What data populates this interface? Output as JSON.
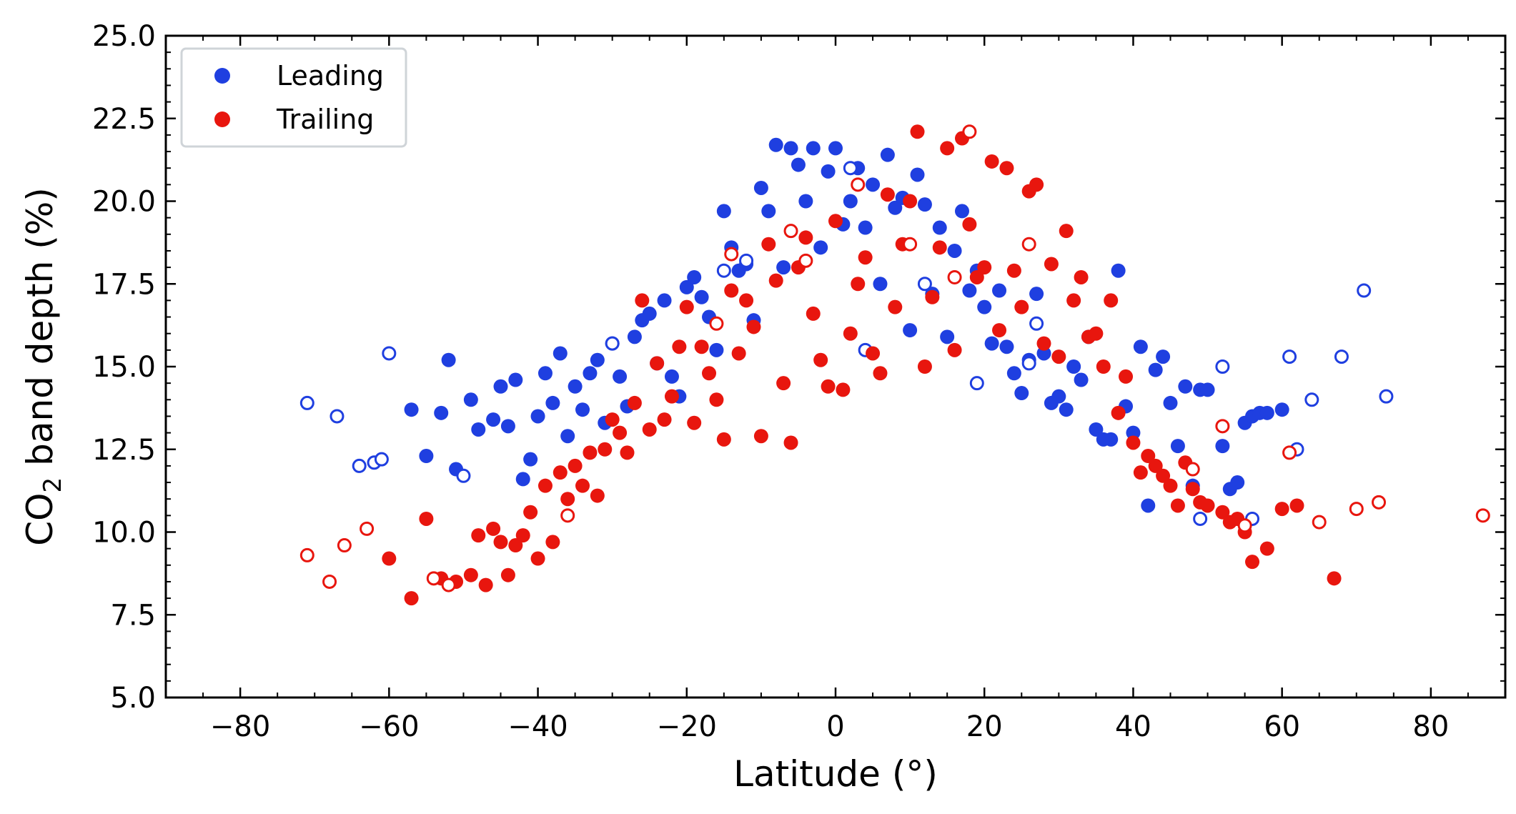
{
  "chart_data": {
    "type": "scatter",
    "title": "",
    "xlabel": "Latitude (°)",
    "ylabel_main": "CO",
    "ylabel_sub": "2",
    "ylabel_rest": " band depth (%)",
    "xlim": [
      -90,
      90
    ],
    "ylim": [
      5.0,
      25.0
    ],
    "xticks": [
      -80,
      -60,
      -40,
      -20,
      0,
      20,
      40,
      60,
      80
    ],
    "xtick_labels": [
      "−80",
      "−60",
      "−40",
      "−20",
      "0",
      "20",
      "40",
      "60",
      "80"
    ],
    "yticks": [
      5.0,
      7.5,
      10.0,
      12.5,
      15.0,
      17.5,
      20.0,
      22.5,
      25.0
    ],
    "ytick_labels": [
      "5.0",
      "7.5",
      "10.0",
      "12.5",
      "15.0",
      "17.5",
      "20.0",
      "22.5",
      "25.0"
    ],
    "legend_position": "top-left",
    "series": [
      {
        "name": "Leading",
        "color": "#1f3fe0",
        "filled": [
          [
            -57,
            13.7
          ],
          [
            -55,
            12.3
          ],
          [
            -53,
            13.6
          ],
          [
            -52,
            15.2
          ],
          [
            -51,
            11.9
          ],
          [
            -49,
            14.0
          ],
          [
            -48,
            13.1
          ],
          [
            -46,
            13.4
          ],
          [
            -45,
            14.4
          ],
          [
            -44,
            13.2
          ],
          [
            -43,
            14.6
          ],
          [
            -42,
            11.6
          ],
          [
            -41,
            12.2
          ],
          [
            -40,
            13.5
          ],
          [
            -39,
            14.8
          ],
          [
            -38,
            13.9
          ],
          [
            -37,
            15.4
          ],
          [
            -36,
            12.9
          ],
          [
            -35,
            14.4
          ],
          [
            -34,
            13.7
          ],
          [
            -33,
            14.8
          ],
          [
            -32,
            15.2
          ],
          [
            -31,
            13.3
          ],
          [
            -30,
            15.7
          ],
          [
            -29,
            14.7
          ],
          [
            -28,
            13.8
          ],
          [
            -27,
            15.9
          ],
          [
            -26,
            16.4
          ],
          [
            -25,
            16.6
          ],
          [
            -24,
            15.1
          ],
          [
            -23,
            17.0
          ],
          [
            -22,
            14.7
          ],
          [
            -21,
            14.1
          ],
          [
            -20,
            17.4
          ],
          [
            -19,
            17.7
          ],
          [
            -18,
            17.1
          ],
          [
            -17,
            16.5
          ],
          [
            -16,
            15.5
          ],
          [
            -15,
            19.7
          ],
          [
            -14,
            18.6
          ],
          [
            -13,
            17.9
          ],
          [
            -12,
            18.1
          ],
          [
            -11,
            16.4
          ],
          [
            -10,
            20.4
          ],
          [
            -9,
            19.7
          ],
          [
            -8,
            21.7
          ],
          [
            -7,
            18.0
          ],
          [
            -6,
            21.6
          ],
          [
            -5,
            21.1
          ],
          [
            -4,
            20.0
          ],
          [
            -3,
            21.6
          ],
          [
            -2,
            18.6
          ],
          [
            -1,
            20.9
          ],
          [
            0,
            21.6
          ],
          [
            1,
            19.3
          ],
          [
            2,
            20.0
          ],
          [
            3,
            21.0
          ],
          [
            4,
            19.2
          ],
          [
            5,
            20.5
          ],
          [
            6,
            17.5
          ],
          [
            7,
            21.4
          ],
          [
            8,
            19.8
          ],
          [
            9,
            20.1
          ],
          [
            10,
            16.1
          ],
          [
            11,
            20.8
          ],
          [
            12,
            19.9
          ],
          [
            13,
            17.2
          ],
          [
            14,
            19.2
          ],
          [
            15,
            15.9
          ],
          [
            16,
            18.5
          ],
          [
            17,
            19.7
          ],
          [
            18,
            17.3
          ],
          [
            19,
            17.9
          ],
          [
            20,
            16.8
          ],
          [
            21,
            15.7
          ],
          [
            22,
            17.3
          ],
          [
            23,
            15.6
          ],
          [
            24,
            14.8
          ],
          [
            25,
            14.2
          ],
          [
            26,
            15.2
          ],
          [
            27,
            17.2
          ],
          [
            28,
            15.4
          ],
          [
            29,
            13.9
          ],
          [
            30,
            14.1
          ],
          [
            31,
            13.7
          ],
          [
            32,
            15.0
          ],
          [
            33,
            14.6
          ],
          [
            34,
            15.9
          ],
          [
            35,
            13.1
          ],
          [
            36,
            12.8
          ],
          [
            37,
            12.8
          ],
          [
            38,
            17.9
          ],
          [
            39,
            13.8
          ],
          [
            40,
            13.0
          ],
          [
            41,
            15.6
          ],
          [
            42,
            10.8
          ],
          [
            43,
            14.9
          ],
          [
            44,
            15.3
          ],
          [
            45,
            13.9
          ],
          [
            46,
            12.6
          ],
          [
            47,
            14.4
          ],
          [
            48,
            11.4
          ],
          [
            49,
            14.3
          ],
          [
            50,
            14.3
          ],
          [
            52,
            12.6
          ],
          [
            53,
            11.3
          ],
          [
            54,
            11.5
          ],
          [
            55,
            13.3
          ],
          [
            56,
            13.5
          ],
          [
            57,
            13.6
          ],
          [
            58,
            13.6
          ],
          [
            60,
            13.7
          ]
        ],
        "open": [
          [
            -71,
            13.9
          ],
          [
            -67,
            13.5
          ],
          [
            -64,
            12.0
          ],
          [
            -62,
            12.1
          ],
          [
            -61,
            12.2
          ],
          [
            -60,
            15.4
          ],
          [
            -50,
            11.7
          ],
          [
            -30,
            15.7
          ],
          [
            -15,
            17.9
          ],
          [
            -12,
            18.2
          ],
          [
            2,
            21.0
          ],
          [
            4,
            15.5
          ],
          [
            12,
            17.5
          ],
          [
            19,
            14.5
          ],
          [
            26,
            15.1
          ],
          [
            27,
            16.3
          ],
          [
            49,
            10.4
          ],
          [
            52,
            15.0
          ],
          [
            56,
            10.4
          ],
          [
            61,
            15.3
          ],
          [
            62,
            12.5
          ],
          [
            64,
            14.0
          ],
          [
            68,
            15.3
          ],
          [
            71,
            17.3
          ],
          [
            74,
            14.1
          ]
        ]
      },
      {
        "name": "Trailing",
        "color": "#e8160e",
        "filled": [
          [
            -60,
            9.2
          ],
          [
            -57,
            8.0
          ],
          [
            -55,
            10.4
          ],
          [
            -53,
            8.6
          ],
          [
            -51,
            8.5
          ],
          [
            -49,
            8.7
          ],
          [
            -48,
            9.9
          ],
          [
            -47,
            8.4
          ],
          [
            -46,
            10.1
          ],
          [
            -45,
            9.7
          ],
          [
            -44,
            8.7
          ],
          [
            -43,
            9.6
          ],
          [
            -42,
            9.9
          ],
          [
            -41,
            10.6
          ],
          [
            -40,
            9.2
          ],
          [
            -39,
            11.4
          ],
          [
            -38,
            9.7
          ],
          [
            -37,
            11.8
          ],
          [
            -36,
            11.0
          ],
          [
            -35,
            12.0
          ],
          [
            -34,
            11.4
          ],
          [
            -33,
            12.4
          ],
          [
            -32,
            11.1
          ],
          [
            -31,
            12.5
          ],
          [
            -30,
            13.4
          ],
          [
            -29,
            13.0
          ],
          [
            -28,
            12.4
          ],
          [
            -27,
            13.9
          ],
          [
            -26,
            17.0
          ],
          [
            -25,
            13.1
          ],
          [
            -24,
            15.1
          ],
          [
            -23,
            13.4
          ],
          [
            -22,
            14.1
          ],
          [
            -21,
            15.6
          ],
          [
            -20,
            16.8
          ],
          [
            -19,
            13.3
          ],
          [
            -18,
            15.6
          ],
          [
            -17,
            14.8
          ],
          [
            -16,
            14.0
          ],
          [
            -15,
            12.8
          ],
          [
            -14,
            17.3
          ],
          [
            -13,
            15.4
          ],
          [
            -12,
            17.0
          ],
          [
            -11,
            16.2
          ],
          [
            -10,
            12.9
          ],
          [
            -9,
            18.7
          ],
          [
            -8,
            17.6
          ],
          [
            -7,
            14.5
          ],
          [
            -6,
            12.7
          ],
          [
            -5,
            18.0
          ],
          [
            -4,
            18.9
          ],
          [
            -3,
            16.6
          ],
          [
            -2,
            15.2
          ],
          [
            -1,
            14.4
          ],
          [
            0,
            19.4
          ],
          [
            1,
            14.3
          ],
          [
            2,
            16.0
          ],
          [
            3,
            17.5
          ],
          [
            4,
            18.3
          ],
          [
            5,
            15.4
          ],
          [
            6,
            14.8
          ],
          [
            7,
            20.2
          ],
          [
            8,
            16.8
          ],
          [
            9,
            18.7
          ],
          [
            10,
            20.0
          ],
          [
            11,
            22.1
          ],
          [
            12,
            15.0
          ],
          [
            13,
            17.1
          ],
          [
            14,
            18.6
          ],
          [
            15,
            21.6
          ],
          [
            16,
            15.5
          ],
          [
            17,
            21.9
          ],
          [
            18,
            19.3
          ],
          [
            19,
            17.7
          ],
          [
            20,
            18.0
          ],
          [
            21,
            21.2
          ],
          [
            22,
            16.1
          ],
          [
            23,
            21.0
          ],
          [
            24,
            17.9
          ],
          [
            25,
            16.8
          ],
          [
            26,
            20.3
          ],
          [
            27,
            20.5
          ],
          [
            28,
            15.7
          ],
          [
            29,
            18.1
          ],
          [
            30,
            15.3
          ],
          [
            31,
            19.1
          ],
          [
            32,
            17.0
          ],
          [
            33,
            17.7
          ],
          [
            34,
            15.9
          ],
          [
            35,
            16.0
          ],
          [
            36,
            15.0
          ],
          [
            37,
            17.0
          ],
          [
            38,
            13.6
          ],
          [
            39,
            14.7
          ],
          [
            40,
            12.7
          ],
          [
            41,
            11.8
          ],
          [
            42,
            12.3
          ],
          [
            43,
            12.0
          ],
          [
            44,
            11.7
          ],
          [
            45,
            11.4
          ],
          [
            46,
            10.8
          ],
          [
            47,
            12.1
          ],
          [
            48,
            11.3
          ],
          [
            49,
            10.9
          ],
          [
            50,
            10.8
          ],
          [
            52,
            10.6
          ],
          [
            53,
            10.3
          ],
          [
            54,
            10.4
          ],
          [
            55,
            10.0
          ],
          [
            56,
            9.1
          ],
          [
            58,
            9.5
          ],
          [
            60,
            10.7
          ],
          [
            62,
            10.8
          ],
          [
            67,
            8.6
          ]
        ],
        "open": [
          [
            -71,
            9.3
          ],
          [
            -68,
            8.5
          ],
          [
            -66,
            9.6
          ],
          [
            -63,
            10.1
          ],
          [
            -54,
            8.6
          ],
          [
            -52,
            8.4
          ],
          [
            -36,
            10.5
          ],
          [
            -16,
            16.3
          ],
          [
            -14,
            18.4
          ],
          [
            -6,
            19.1
          ],
          [
            -4,
            18.2
          ],
          [
            3,
            20.5
          ],
          [
            10,
            18.7
          ],
          [
            16,
            17.7
          ],
          [
            18,
            22.1
          ],
          [
            26,
            18.7
          ],
          [
            48,
            11.9
          ],
          [
            52,
            13.2
          ],
          [
            55,
            10.2
          ],
          [
            61,
            12.4
          ],
          [
            65,
            10.3
          ],
          [
            70,
            10.7
          ],
          [
            73,
            10.9
          ],
          [
            87,
            10.5
          ]
        ]
      }
    ]
  }
}
